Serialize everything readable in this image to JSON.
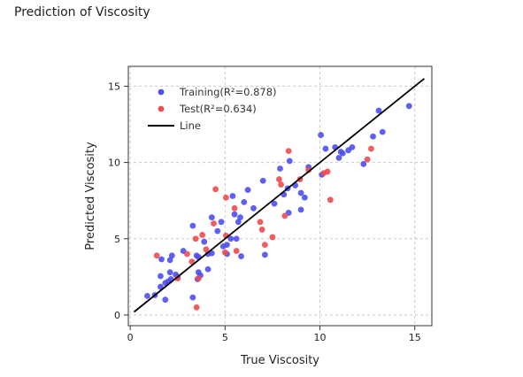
{
  "chart_data": {
    "type": "scatter",
    "title": "Prediction of Viscosity",
    "xlabel": "True Viscosity",
    "ylabel": "Predicted Viscosity",
    "xlim": [
      -0.1,
      15.9
    ],
    "ylim": [
      -0.7,
      16.3
    ],
    "xticks": [
      0,
      5,
      10,
      15
    ],
    "yticks": [
      0,
      5,
      10,
      15
    ],
    "grid": true,
    "legend_position": "top-left",
    "series": [
      {
        "name": "Training(R²=0.878)",
        "color": "#4b4ff0",
        "marker": "circle",
        "points": [
          [
            0.9,
            1.25
          ],
          [
            1.3,
            1.3
          ],
          [
            1.6,
            1.85
          ],
          [
            1.6,
            2.55
          ],
          [
            1.85,
            1.0
          ],
          [
            1.85,
            2.1
          ],
          [
            2.0,
            2.2
          ],
          [
            2.1,
            2.8
          ],
          [
            2.1,
            3.6
          ],
          [
            1.65,
            3.65
          ],
          [
            2.2,
            3.9
          ],
          [
            2.15,
            2.35
          ],
          [
            2.4,
            2.65
          ],
          [
            2.5,
            2.5
          ],
          [
            2.8,
            4.2
          ],
          [
            3.3,
            5.85
          ],
          [
            3.3,
            1.15
          ],
          [
            3.5,
            3.9
          ],
          [
            3.6,
            3.8
          ],
          [
            3.6,
            2.8
          ],
          [
            3.7,
            2.6
          ],
          [
            3.55,
            2.35
          ],
          [
            3.9,
            4.8
          ],
          [
            4.1,
            4.0
          ],
          [
            4.1,
            3.0
          ],
          [
            4.3,
            4.05
          ],
          [
            4.3,
            6.4
          ],
          [
            4.6,
            5.5
          ],
          [
            4.8,
            6.1
          ],
          [
            4.9,
            4.5
          ],
          [
            5.1,
            4.6
          ],
          [
            5.1,
            4.0
          ],
          [
            5.3,
            5.0
          ],
          [
            5.4,
            7.8
          ],
          [
            5.5,
            6.6
          ],
          [
            5.6,
            5.0
          ],
          [
            5.7,
            6.1
          ],
          [
            5.8,
            6.4
          ],
          [
            5.85,
            3.85
          ],
          [
            6.0,
            7.4
          ],
          [
            6.2,
            8.2
          ],
          [
            6.5,
            7.0
          ],
          [
            7.0,
            8.8
          ],
          [
            7.1,
            3.95
          ],
          [
            7.6,
            7.3
          ],
          [
            7.9,
            9.6
          ],
          [
            8.1,
            7.9
          ],
          [
            8.3,
            8.3
          ],
          [
            8.35,
            6.7
          ],
          [
            8.4,
            10.1
          ],
          [
            8.7,
            8.5
          ],
          [
            9.0,
            6.9
          ],
          [
            9.0,
            8.0
          ],
          [
            9.2,
            7.7
          ],
          [
            9.4,
            9.7
          ],
          [
            10.05,
            11.8
          ],
          [
            10.1,
            9.2
          ],
          [
            10.3,
            10.9
          ],
          [
            10.8,
            11.0
          ],
          [
            11.0,
            10.3
          ],
          [
            11.1,
            10.7
          ],
          [
            11.2,
            10.6
          ],
          [
            11.5,
            10.8
          ],
          [
            11.7,
            11.0
          ],
          [
            12.3,
            9.9
          ],
          [
            12.8,
            11.7
          ],
          [
            13.1,
            13.4
          ],
          [
            13.3,
            12.0
          ],
          [
            14.7,
            13.7
          ]
        ]
      },
      {
        "name": "Test(R²=0.634)",
        "color": "#f04a4f",
        "marker": "circle",
        "points": [
          [
            1.4,
            3.9
          ],
          [
            2.5,
            2.4
          ],
          [
            3.0,
            4.0
          ],
          [
            3.25,
            3.5
          ],
          [
            3.45,
            5.0
          ],
          [
            3.6,
            2.4
          ],
          [
            3.5,
            0.5
          ],
          [
            3.8,
            5.25
          ],
          [
            4.0,
            4.3
          ],
          [
            4.4,
            6.0
          ],
          [
            4.5,
            8.25
          ],
          [
            5.0,
            4.1
          ],
          [
            5.05,
            5.2
          ],
          [
            5.05,
            7.7
          ],
          [
            5.5,
            7.0
          ],
          [
            5.6,
            4.2
          ],
          [
            6.85,
            6.1
          ],
          [
            6.95,
            5.6
          ],
          [
            7.1,
            4.6
          ],
          [
            7.5,
            5.1
          ],
          [
            7.85,
            8.9
          ],
          [
            7.95,
            8.55
          ],
          [
            8.15,
            6.5
          ],
          [
            8.35,
            10.75
          ],
          [
            8.95,
            8.9
          ],
          [
            9.4,
            9.5
          ],
          [
            10.2,
            9.3
          ],
          [
            10.4,
            9.4
          ],
          [
            10.55,
            7.55
          ],
          [
            12.5,
            10.2
          ],
          [
            12.7,
            10.9
          ]
        ]
      },
      {
        "name": "Line",
        "color": "#000000",
        "type": "line",
        "points": [
          [
            0.2,
            0.2
          ],
          [
            15.5,
            15.5
          ]
        ]
      }
    ]
  }
}
